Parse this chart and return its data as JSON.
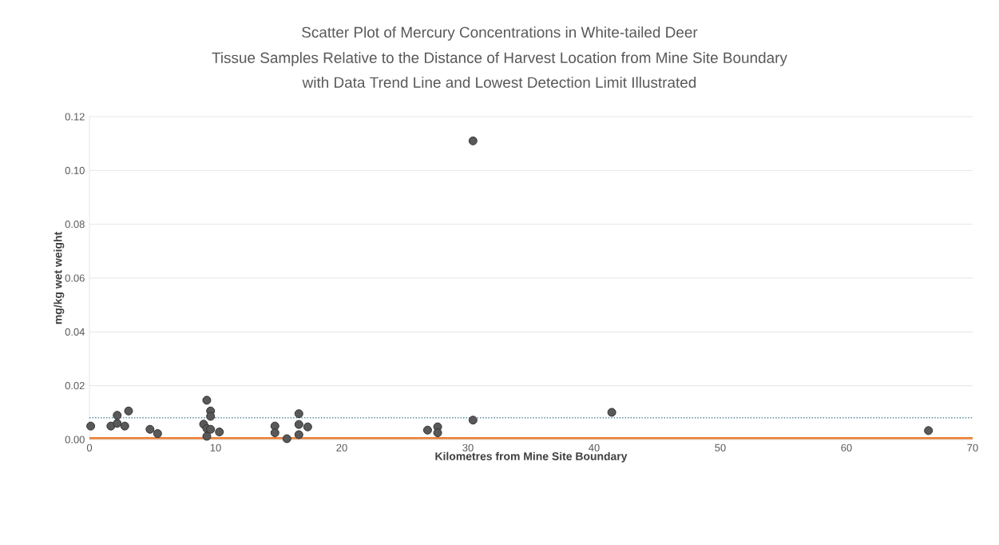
{
  "chart_data": {
    "type": "scatter",
    "title": "Scatter Plot of Mercury Concentrations in White-tailed Deer",
    "subtitle": "Tissue Samples Relative to the Distance of Harvest Location from Mine Site Boundary with Data Trend Line and Lowest Detection Limit Illustrated",
    "xlabel": "Kilometres from Mine Site Boundary",
    "ylabel": "mg/kg wet weight",
    "series": [
      {
        "color": "#595959",
        "marker": "circle",
        "x": [
          0.1,
          1.7,
          2.2,
          2.2,
          2.8,
          3.1,
          4.8,
          5.4,
          9.3,
          9.6,
          9.6,
          9.05,
          9.3,
          9.6,
          9.3,
          10.3,
          14.7,
          14.7,
          15.65,
          16.6,
          16.6,
          16.6,
          17.3,
          26.8,
          27.6,
          27.6,
          30.4,
          30.4,
          41.4,
          66.5
        ],
        "values": [
          0.005,
          0.005,
          0.009,
          0.006,
          0.005,
          0.0106,
          0.0038,
          0.0022,
          0.0146,
          0.0106,
          0.0086,
          0.0057,
          0.0041,
          0.0038,
          0.0012,
          0.0028,
          0.005,
          0.0025,
          0.0003,
          0.0096,
          0.0056,
          0.0018,
          0.0047,
          0.0035,
          0.0047,
          0.0025,
          0.0072,
          0.111,
          0.0101,
          0.0033
        ]
      },
      {
        "type": "line",
        "color": "#5b8fa3",
        "line_style": "dotted",
        "marker": "none",
        "x": [
          0,
          70
        ],
        "values": [
          0.0081,
          0.0081
        ]
      }
    ],
    "ref_lines": [
      {
        "axis": "y",
        "value": 0.0005,
        "color": "#ed7d31"
      }
    ],
    "xlim": [
      0,
      70
    ],
    "xticks": [
      0,
      10,
      20,
      30,
      40,
      50,
      60,
      70
    ],
    "ylim": [
      0,
      0.12
    ],
    "yticks": [
      {
        "value": 0,
        "label": "0.00"
      },
      {
        "value": 0.02,
        "label": "0.02"
      },
      {
        "value": 0.04,
        "label": "0.04"
      },
      {
        "value": 0.06,
        "label": "0.06"
      },
      {
        "value": 0.08,
        "label": "0.08"
      },
      {
        "value": 0.1,
        "label": "0.10"
      },
      {
        "value": 0.12,
        "label": "0.12"
      }
    ],
    "grid": "y"
  }
}
